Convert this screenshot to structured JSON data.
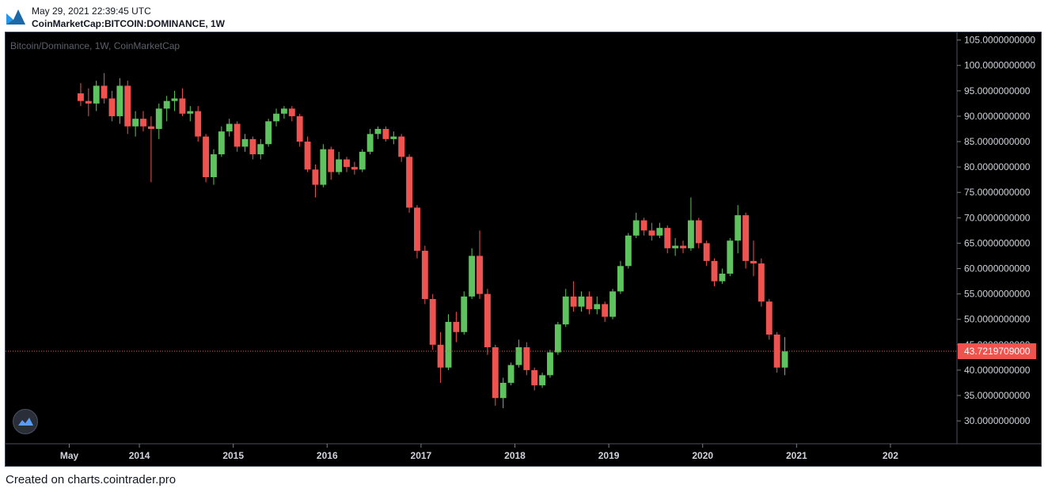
{
  "header": {
    "timestamp": "May 29, 2021 22:39:45 UTC",
    "symbol": "CoinMarketCap:BITCOIN:DOMINANCE, 1W"
  },
  "legend": "Bitcoin/Dominance, 1W, CoinMarketCap",
  "footer": "Created on charts.cointrader.pro",
  "colors": {
    "background": "#000000",
    "up": "#5ec35e",
    "down": "#ef5350",
    "axis_text": "#d1d4dc",
    "last_price": "#ef5350"
  },
  "chart_data": {
    "type": "candlestick",
    "title": "",
    "xlabel": "",
    "ylabel": "",
    "ylim": [
      25.5,
      106.5
    ],
    "y_ticks": [
      "30.0000000000",
      "35.0000000000",
      "40.0000000000",
      "45.0000000000",
      "50.0000000000",
      "55.0000000000",
      "60.0000000000",
      "65.0000000000",
      "70.0000000000",
      "75.0000000000",
      "80.0000000000",
      "85.0000000000",
      "90.0000000000",
      "95.0000000000",
      "100.0000000000",
      "105.0000000000"
    ],
    "x_ticks": [
      "May",
      "2014",
      "2015",
      "2016",
      "2017",
      "2018",
      "2019",
      "2020",
      "2021",
      "202"
    ],
    "last_price": 43.7219709,
    "last_price_label": "43.7219709000",
    "grid": false,
    "series": [
      {
        "values": [
          [
            "2013-05",
            94.5,
            96.5,
            92.0,
            93.0
          ],
          [
            "2013-06",
            93.0,
            95.5,
            90.0,
            92.5
          ],
          [
            "2013-07",
            92.5,
            97.0,
            91.0,
            96.0
          ],
          [
            "2013-08",
            96.0,
            98.5,
            92.5,
            93.5
          ],
          [
            "2013-09",
            93.5,
            95.0,
            89.0,
            90.0
          ],
          [
            "2013-10",
            90.0,
            97.5,
            88.5,
            96.0
          ],
          [
            "2013-11",
            96.0,
            97.0,
            86.5,
            88.0
          ],
          [
            "2013-12",
            88.0,
            91.0,
            86.0,
            89.5
          ],
          [
            "2014-01",
            89.5,
            91.0,
            87.0,
            88.0
          ],
          [
            "2014-02",
            88.0,
            90.0,
            77.0,
            87.5
          ],
          [
            "2014-03",
            87.5,
            92.5,
            85.5,
            91.5
          ],
          [
            "2014-04",
            91.5,
            94.0,
            89.0,
            93.0
          ],
          [
            "2014-05",
            93.0,
            95.0,
            91.0,
            93.5
          ],
          [
            "2014-06",
            93.5,
            95.5,
            90.0,
            90.5
          ],
          [
            "2014-07",
            90.5,
            92.0,
            89.0,
            91.0
          ],
          [
            "2014-08",
            91.0,
            92.0,
            85.0,
            86.0
          ],
          [
            "2014-09",
            86.0,
            86.5,
            77.0,
            78.0
          ],
          [
            "2014-10",
            78.0,
            83.5,
            76.5,
            82.5
          ],
          [
            "2014-11",
            82.5,
            88.0,
            82.0,
            87.0
          ],
          [
            "2014-12",
            87.0,
            89.5,
            86.0,
            88.5
          ],
          [
            "2015-01",
            88.5,
            89.0,
            83.0,
            84.0
          ],
          [
            "2015-02",
            84.0,
            86.5,
            83.0,
            85.5
          ],
          [
            "2015-03",
            85.5,
            86.0,
            81.5,
            82.5
          ],
          [
            "2015-04",
            82.5,
            85.5,
            81.5,
            84.5
          ],
          [
            "2015-05",
            84.5,
            89.5,
            84.0,
            89.0
          ],
          [
            "2015-06",
            89.0,
            91.5,
            88.0,
            90.5
          ],
          [
            "2015-07",
            90.5,
            92.0,
            89.5,
            91.5
          ],
          [
            "2015-08",
            91.5,
            92.0,
            89.0,
            90.0
          ],
          [
            "2015-09",
            90.0,
            90.5,
            84.0,
            85.0
          ],
          [
            "2015-10",
            85.0,
            86.0,
            79.0,
            79.5
          ],
          [
            "2015-11",
            79.5,
            80.5,
            74.0,
            76.5
          ],
          [
            "2015-12",
            76.5,
            84.5,
            76.0,
            83.5
          ],
          [
            "2016-01",
            83.5,
            84.0,
            77.5,
            79.0
          ],
          [
            "2016-02",
            79.0,
            83.0,
            78.5,
            81.5
          ],
          [
            "2016-03",
            81.5,
            82.0,
            79.0,
            80.0
          ],
          [
            "2016-04",
            80.0,
            81.0,
            78.5,
            79.5
          ],
          [
            "2016-05",
            79.5,
            83.5,
            79.0,
            83.0
          ],
          [
            "2016-06",
            83.0,
            87.5,
            82.5,
            86.5
          ],
          [
            "2016-07",
            86.5,
            88.0,
            85.5,
            87.5
          ],
          [
            "2016-08",
            87.5,
            88.0,
            85.0,
            85.5
          ],
          [
            "2016-09",
            85.5,
            87.0,
            84.5,
            86.0
          ],
          [
            "2016-10",
            86.0,
            86.5,
            81.0,
            82.0
          ],
          [
            "2016-11",
            82.0,
            82.5,
            71.0,
            72.0
          ],
          [
            "2016-12",
            72.0,
            72.5,
            62.0,
            63.5
          ],
          [
            "2017-01",
            63.5,
            64.5,
            53.0,
            54.0
          ],
          [
            "2017-02",
            54.0,
            55.0,
            44.0,
            45.0
          ],
          [
            "2017-03",
            45.0,
            47.5,
            37.5,
            40.5
          ],
          [
            "2017-04",
            40.5,
            51.0,
            40.0,
            49.5
          ],
          [
            "2017-05",
            49.5,
            51.5,
            45.5,
            47.5
          ],
          [
            "2017-06",
            47.5,
            55.5,
            47.0,
            54.5
          ],
          [
            "2017-07",
            54.5,
            64.0,
            54.0,
            62.5
          ],
          [
            "2017-08",
            62.5,
            67.5,
            54.0,
            55.0
          ],
          [
            "2017-09",
            55.0,
            56.0,
            43.0,
            44.5
          ],
          [
            "2017-10",
            44.5,
            45.0,
            33.0,
            34.5
          ],
          [
            "2017-11",
            34.5,
            38.5,
            32.5,
            37.5
          ],
          [
            "2017-12",
            37.5,
            41.5,
            37.0,
            41.0
          ],
          [
            "2018-01",
            41.0,
            46.0,
            40.5,
            44.5
          ],
          [
            "2018-02",
            44.5,
            45.5,
            39.0,
            40.0
          ],
          [
            "2018-03",
            40.0,
            40.5,
            36.0,
            37.0
          ],
          [
            "2018-04",
            37.0,
            39.5,
            36.5,
            39.0
          ],
          [
            "2018-05",
            39.0,
            44.0,
            38.5,
            43.5
          ],
          [
            "2018-06",
            43.5,
            49.5,
            43.0,
            49.0
          ],
          [
            "2018-07",
            49.0,
            56.0,
            48.5,
            54.5
          ],
          [
            "2018-08",
            54.5,
            57.5,
            51.5,
            52.5
          ],
          [
            "2018-09",
            52.5,
            55.5,
            51.5,
            54.5
          ],
          [
            "2018-10",
            54.5,
            55.5,
            51.0,
            52.0
          ],
          [
            "2018-11",
            52.0,
            54.5,
            51.0,
            53.0
          ],
          [
            "2018-12",
            53.0,
            53.5,
            49.5,
            50.5
          ],
          [
            "2019-01",
            50.5,
            56.0,
            50.0,
            55.5
          ],
          [
            "2019-02",
            55.5,
            61.5,
            55.0,
            60.5
          ],
          [
            "2019-03",
            60.5,
            67.0,
            60.0,
            66.5
          ],
          [
            "2019-04",
            66.5,
            71.0,
            66.0,
            69.5
          ],
          [
            "2019-05",
            69.5,
            70.0,
            66.5,
            67.5
          ],
          [
            "2019-06",
            67.5,
            69.0,
            65.5,
            66.5
          ],
          [
            "2019-07",
            66.5,
            69.0,
            66.0,
            68.0
          ],
          [
            "2019-08",
            68.0,
            68.5,
            63.0,
            64.0
          ],
          [
            "2019-09",
            64.0,
            66.0,
            62.5,
            64.5
          ],
          [
            "2019-10",
            64.5,
            65.5,
            63.0,
            64.0
          ],
          [
            "2019-11",
            64.0,
            74.0,
            63.5,
            69.5
          ],
          [
            "2019-12",
            69.5,
            70.0,
            64.0,
            65.0
          ],
          [
            "2020-01",
            65.0,
            65.5,
            60.5,
            61.5
          ],
          [
            "2020-02",
            61.5,
            62.0,
            56.5,
            57.5
          ],
          [
            "2020-03",
            57.5,
            60.0,
            57.0,
            59.0
          ],
          [
            "2020-04",
            59.0,
            66.0,
            58.5,
            65.5
          ],
          [
            "2020-05",
            65.5,
            72.5,
            63.0,
            70.5
          ],
          [
            "2020-06",
            70.5,
            71.0,
            60.0,
            61.5
          ],
          [
            "2020-07",
            61.5,
            65.5,
            58.5,
            61.0
          ],
          [
            "2020-08",
            61.0,
            62.0,
            52.5,
            53.5
          ],
          [
            "2020-09",
            53.5,
            54.0,
            46.0,
            47.0
          ],
          [
            "2020-10",
            47.0,
            47.5,
            39.5,
            40.5
          ],
          [
            "2020-11",
            40.5,
            46.5,
            39.0,
            43.7
          ]
        ]
      }
    ]
  }
}
